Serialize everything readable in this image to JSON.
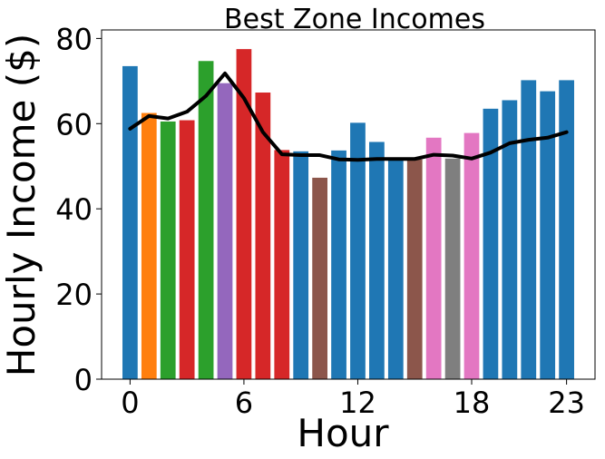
{
  "chart_data": {
    "type": "bar",
    "title": "Best Zone Incomes",
    "xlabel": "Hour",
    "ylabel": "Hourly Income ($)",
    "x": [
      0,
      1,
      2,
      3,
      4,
      5,
      6,
      7,
      8,
      9,
      10,
      11,
      12,
      13,
      14,
      15,
      16,
      17,
      18,
      19,
      20,
      21,
      22,
      23
    ],
    "values": [
      73.5,
      62.5,
      60.5,
      60.8,
      74.7,
      69.5,
      77.5,
      67.3,
      53.8,
      53.5,
      47.3,
      53.7,
      60.2,
      55.7,
      51.5,
      51.6,
      56.7,
      51.8,
      57.8,
      63.5,
      65.5,
      70.2,
      67.6,
      70.2
    ],
    "bar_colors": [
      "#1f77b4",
      "#ff7f0e",
      "#2ca02c",
      "#d62728",
      "#2ca02c",
      "#9467bd",
      "#d62728",
      "#d62728",
      "#d62728",
      "#1f77b4",
      "#8c564b",
      "#1f77b4",
      "#1f77b4",
      "#1f77b4",
      "#1f77b4",
      "#8c564b",
      "#e377c2",
      "#7f7f7f",
      "#e377c2",
      "#1f77b4",
      "#1f77b4",
      "#1f77b4",
      "#1f77b4",
      "#1f77b4"
    ],
    "line": {
      "color": "#000000",
      "values": [
        58.8,
        61.8,
        61.2,
        62.8,
        66.5,
        71.8,
        66.0,
        58.0,
        52.8,
        52.6,
        52.6,
        51.6,
        51.5,
        51.7,
        51.7,
        51.7,
        52.7,
        52.5,
        51.8,
        53.2,
        55.4,
        56.2,
        56.7,
        58.0
      ]
    },
    "xticks": [
      0,
      6,
      12,
      18,
      23
    ],
    "yticks": [
      0,
      20,
      40,
      60,
      80
    ],
    "xlim": [
      -1.5,
      24.5
    ],
    "ylim": [
      0,
      82
    ],
    "grid": false,
    "legend": "none"
  }
}
